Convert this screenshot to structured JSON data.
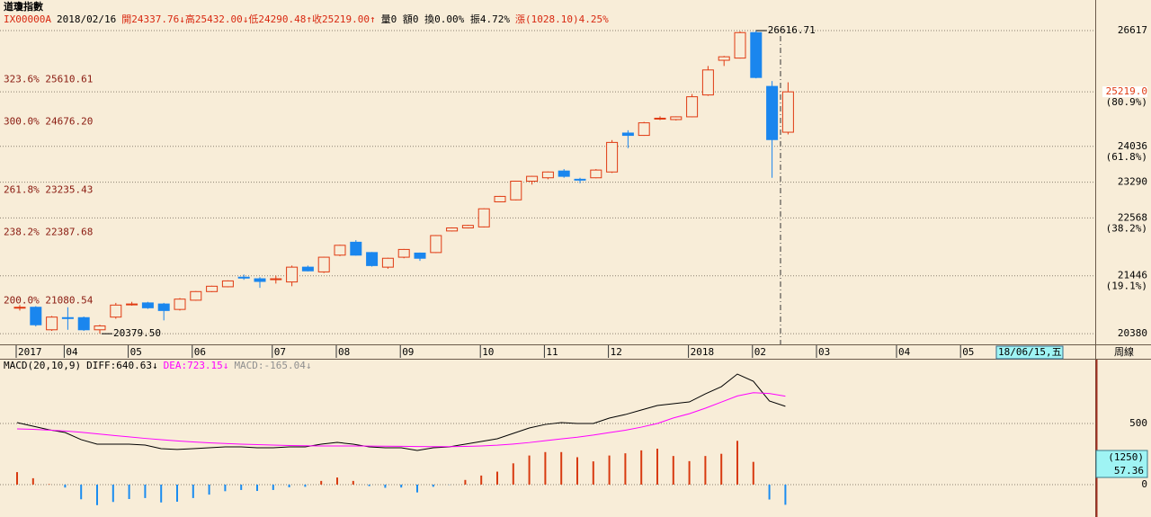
{
  "title": "道瓊指數",
  "quote_bar": [
    {
      "text": "IX00000A",
      "color": "#d82810"
    },
    {
      "text": "2018/02/16",
      "color": "#000000"
    },
    {
      "text": "開24337.76↓高25432.00↓低24290.48↑收25219.00↑",
      "color": "#d82810"
    },
    {
      "text": "量0 額0 換0.00% 振4.72%",
      "color": "#000000"
    },
    {
      "text": "漲(1028.10)4.25%",
      "color": "#d82810"
    }
  ],
  "cursor_label": "18/06/15,五",
  "period": "周線",
  "chart_data": [
    {
      "type": "candlestick",
      "log": true,
      "grid": true,
      "up_color": "#e03a12",
      "down_color": "#1a86ee",
      "ylim": [
        20189,
        26957
      ],
      "yticks": [
        26617,
        24036,
        23290,
        22568,
        21446,
        20380
      ],
      "current": {
        "value": 25219,
        "label": "25219.0"
      },
      "ratio_labels": [
        {
          "value": 25219,
          "label": "(80.9%)"
        },
        {
          "value": 24036,
          "label": "(61.8%)"
        },
        {
          "value": 22568,
          "label": "(38.2%)"
        },
        {
          "value": 21446,
          "label": "(19.1%)"
        }
      ],
      "fib_levels": [
        {
          "value": 25610.61,
          "label": "323.6% 25610.61"
        },
        {
          "value": 24676.2,
          "label": "300.0% 24676.20"
        },
        {
          "value": 23235.43,
          "label": "261.8% 23235.43"
        },
        {
          "value": 22387.68,
          "label": "238.2% 22387.68"
        },
        {
          "value": 21080.54,
          "label": "200.0% 21080.54"
        }
      ],
      "annotations": [
        {
          "value": 26616.71,
          "label": "26616.71",
          "at": "high"
        },
        {
          "value": 20379.5,
          "label": "20379.50",
          "at": "low"
        }
      ],
      "categories": [
        "2017",
        null,
        null,
        "04",
        null,
        null,
        null,
        "05",
        null,
        null,
        null,
        "06",
        null,
        null,
        null,
        null,
        "07",
        null,
        null,
        null,
        "08",
        null,
        null,
        null,
        "09",
        null,
        null,
        null,
        null,
        "10",
        null,
        null,
        null,
        "11",
        null,
        null,
        null,
        "12",
        null,
        null,
        null,
        null,
        "2018",
        null,
        null,
        null,
        "02",
        null,
        null,
        null,
        "03",
        null,
        null,
        null,
        null,
        "04",
        null,
        null,
        null,
        "05",
        null,
        null,
        null,
        null,
        null,
        null,
        null,
        null
      ],
      "open": [
        20850,
        20860,
        20450,
        20670,
        20670,
        20450,
        20680,
        20910,
        20940,
        20920,
        20820,
        20990,
        21150,
        21240,
        21420,
        21390,
        21380,
        21330,
        21610,
        21520,
        21840,
        22090,
        21890,
        21610,
        21800,
        21880,
        21890,
        22310,
        22370,
        22390,
        22890,
        22930,
        23310,
        23380,
        23520,
        23350,
        23380,
        23500,
        24320,
        24270,
        24630,
        24610,
        24670,
        25150,
        25930,
        25980,
        26570,
        25340,
        24337.76,
        null,
        null,
        null,
        null,
        null,
        null,
        null,
        null,
        null,
        null,
        null,
        null,
        null,
        null,
        null,
        null,
        null,
        null,
        null
      ],
      "high": [
        20900,
        20880,
        20700,
        20860,
        20690,
        20540,
        20940,
        20960,
        20960,
        20940,
        21030,
        21160,
        21260,
        21360,
        21470,
        21420,
        21450,
        21640,
        21640,
        21810,
        22040,
        22130,
        21900,
        21790,
        21960,
        21890,
        22230,
        22380,
        22430,
        22760,
        23010,
        23320,
        23420,
        23510,
        23560,
        23380,
        23560,
        24170,
        24380,
        24560,
        24680,
        24680,
        25170,
        25800,
        26030,
        26600,
        26616.71,
        25460,
        25432,
        null,
        null,
        null,
        null,
        null,
        null,
        null,
        null,
        null,
        null,
        null,
        null,
        null,
        null,
        null,
        null,
        null,
        null,
        null
      ],
      "low": [
        20800,
        20510,
        20430,
        20450,
        20430,
        20379.5,
        20650,
        20890,
        20830,
        20620,
        20800,
        20980,
        21140,
        21230,
        21370,
        21220,
        21300,
        21250,
        21530,
        21500,
        21820,
        21830,
        21620,
        21580,
        21780,
        21730,
        21880,
        22300,
        22360,
        22380,
        22880,
        22920,
        23240,
        23350,
        23380,
        23270,
        23370,
        23480,
        24000,
        24260,
        24600,
        24590,
        24660,
        25130,
        25800,
        25970,
        25520,
        23380,
        24290.48,
        null,
        null,
        null,
        null,
        null,
        null,
        null,
        null,
        null,
        null,
        null,
        null,
        null,
        null,
        null,
        null,
        null,
        null,
        null
      ],
      "close": [
        20860,
        20540,
        20680,
        20660,
        20450,
        20520,
        20900,
        20920,
        20850,
        20800,
        21010,
        21150,
        21250,
        21350,
        21410,
        21340,
        21390,
        21610,
        21540,
        21800,
        22030,
        21840,
        21640,
        21780,
        21950,
        21780,
        22220,
        22370,
        22420,
        22750,
        23000,
        23310,
        23410,
        23500,
        23410,
        23340,
        23540,
        24120,
        24270,
        24540,
        24640,
        24670,
        25110,
        25710,
        26010,
        26570,
        25540,
        24180,
        25219,
        null,
        null,
        null,
        null,
        null,
        null,
        null,
        null,
        null,
        null,
        null,
        null,
        null,
        null,
        null,
        null,
        null,
        null,
        null
      ]
    },
    {
      "type": "macd",
      "label": "MACD(20,10,9)",
      "up_color": "#d83a10",
      "down_color": "#1a8cf0",
      "ylim": [
        -243,
        1022
      ],
      "yticks": [
        0,
        500
      ],
      "grid": true,
      "cursor_values": [
        "(1250)",
        "57.36"
      ],
      "series": [
        {
          "name": "DIFF:640.63↓",
          "color": "#000000",
          "style": "line",
          "values": [
            507,
            478,
            448,
            426,
            368,
            331,
            331,
            331,
            323,
            294,
            287,
            294,
            301,
            309,
            309,
            301,
            301,
            309,
            309,
            331,
            345,
            331,
            309,
            301,
            301,
            279,
            301,
            309,
            331,
            353,
            375,
            419,
            463,
            492,
            507,
            500,
            500,
            544,
            573,
            610,
            647,
            662,
            676,
            742,
            801,
            904,
            845,
            684,
            640.63,
            null,
            null,
            null,
            null,
            null,
            null,
            null,
            null,
            null,
            null,
            null,
            null,
            null,
            null,
            null,
            null,
            null,
            null,
            null
          ]
        },
        {
          "name": "DEA:723.15↓",
          "color": "#ff00ff",
          "style": "line",
          "values": [
            456,
            452,
            446,
            438,
            428,
            415,
            402,
            390,
            378,
            367,
            357,
            349,
            342,
            336,
            331,
            327,
            323,
            320,
            318,
            316,
            316,
            316,
            315,
            314,
            313,
            311,
            310,
            310,
            312,
            316,
            322,
            332,
            344,
            359,
            374,
            388,
            405,
            425,
            445,
            470,
            500,
            545,
            580,
            625,
            675,
            725,
            752,
            745,
            723.15,
            null,
            null,
            null,
            null,
            null,
            null,
            null,
            null,
            null,
            null,
            null,
            null,
            null,
            null,
            null,
            null,
            null,
            null,
            null
          ]
        },
        {
          "name": "MACD:-165.04↓",
          "color": "#909090",
          "style": "histogram",
          "values": [
            102,
            52,
            4,
            -24,
            -120,
            -168,
            -142,
            -118,
            -110,
            -146,
            -140,
            -110,
            -82,
            -54,
            -44,
            -52,
            -44,
            -22,
            -18,
            30,
            58,
            30,
            -12,
            -26,
            -24,
            -64,
            -18,
            -2,
            38,
            74,
            106,
            174,
            238,
            266,
            266,
            224,
            190,
            238,
            256,
            280,
            294,
            234,
            192,
            234,
            252,
            358,
            186,
            -122,
            -165.04,
            null,
            null,
            null,
            null,
            null,
            null,
            null,
            null,
            null,
            null,
            null,
            null,
            null,
            null,
            null,
            null,
            null,
            null,
            null
          ]
        }
      ]
    }
  ]
}
